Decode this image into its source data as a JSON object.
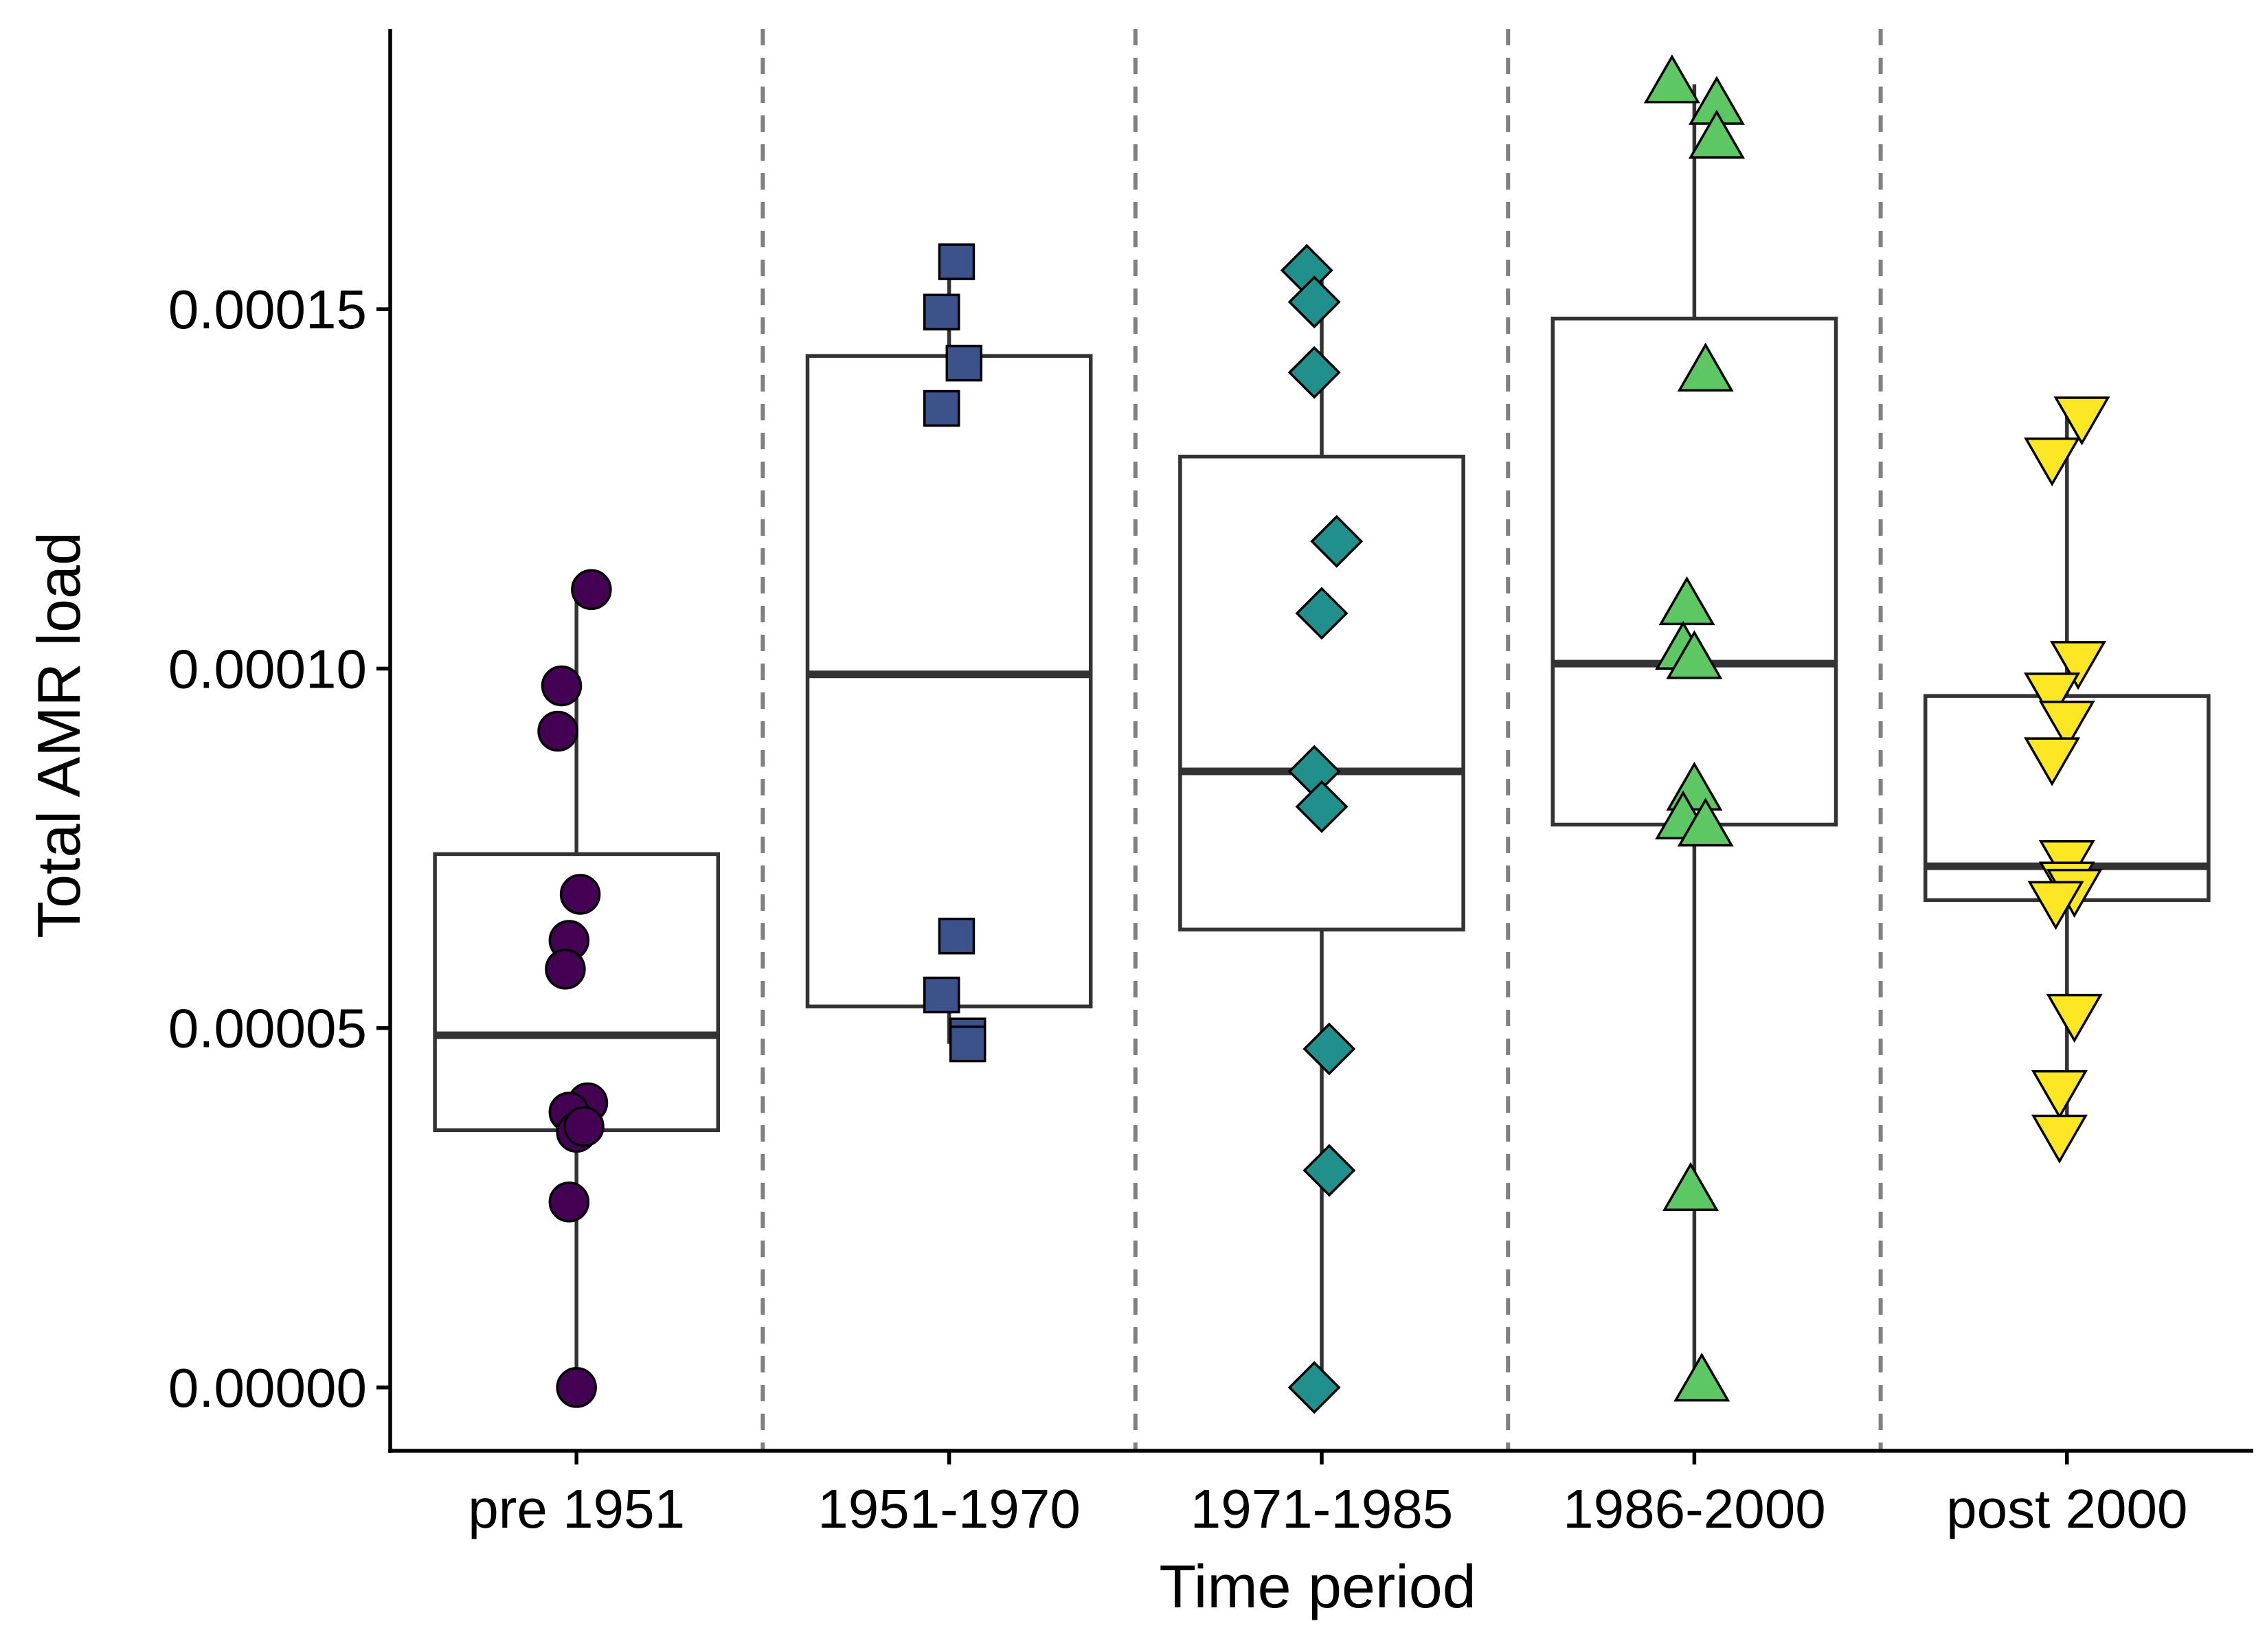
{
  "chart_data": {
    "type": "box",
    "xlabel": "Time period",
    "ylabel": "Total AMR load",
    "ylim": [
      -8.8e-06,
      0.000189
    ],
    "yticks": [
      0.0,
      5e-05,
      0.0001,
      0.00015
    ],
    "ytick_labels": [
      "0.00000",
      "0.00005",
      "0.00010",
      "0.00015"
    ],
    "categories": [
      "pre 1951",
      "1951-1970",
      "1971-1985",
      "1986-2000",
      "post 2000"
    ],
    "separators": "dashed vertical lines between groups",
    "grid": false,
    "legend": "none",
    "groups": [
      {
        "category": "pre 1951",
        "color": "#440154",
        "marker": "circle",
        "box": {
          "whisker_low": 0.0,
          "q1": 3.58e-05,
          "median": 4.9e-05,
          "q3": 7.42e-05,
          "whisker_high": 0.000111
        },
        "points": [
          {
            "offset": 0.04,
            "y": 0.000111
          },
          {
            "offset": -0.04,
            "y": 9.76e-05
          },
          {
            "offset": -0.05,
            "y": 9.13e-05
          },
          {
            "offset": 0.01,
            "y": 6.86e-05
          },
          {
            "offset": -0.02,
            "y": 6.22e-05
          },
          {
            "offset": -0.03,
            "y": 5.82e-05
          },
          {
            "offset": 0.03,
            "y": 3.96e-05
          },
          {
            "offset": -0.02,
            "y": 3.83e-05
          },
          {
            "offset": 0.0,
            "y": 3.55e-05
          },
          {
            "offset": 0.02,
            "y": 3.63e-05
          },
          {
            "offset": -0.02,
            "y": 2.58e-05
          },
          {
            "offset": 0.0,
            "y": 0.0
          }
        ]
      },
      {
        "category": "1951-1970",
        "color": "#3B528B",
        "marker": "square",
        "box": {
          "whisker_low": 4.78e-05,
          "q1": 5.3e-05,
          "median": 9.92e-05,
          "q3": 0.0001435,
          "whisker_high": 0.0001566
        },
        "points": [
          {
            "offset": 0.02,
            "y": 0.0001566
          },
          {
            "offset": -0.02,
            "y": 0.0001496
          },
          {
            "offset": 0.04,
            "y": 0.0001425
          },
          {
            "offset": -0.02,
            "y": 0.0001362
          },
          {
            "offset": 0.02,
            "y": 6.28e-05
          },
          {
            "offset": -0.02,
            "y": 5.46e-05
          },
          {
            "offset": 0.05,
            "y": 4.89e-05
          },
          {
            "offset": 0.05,
            "y": 4.78e-05
          }
        ]
      },
      {
        "category": "1971-1985",
        "color": "#21908C",
        "marker": "diamond",
        "box": {
          "whisker_low": 0.0,
          "q1": 6.37e-05,
          "median": 8.57e-05,
          "q3": 0.0001295,
          "whisker_high": 0.0001554
        },
        "points": [
          {
            "offset": -0.04,
            "y": 0.0001554
          },
          {
            "offset": -0.02,
            "y": 0.000151
          },
          {
            "offset": -0.02,
            "y": 0.0001412
          },
          {
            "offset": 0.04,
            "y": 0.0001177
          },
          {
            "offset": 0.0,
            "y": 0.0001077
          },
          {
            "offset": -0.02,
            "y": 8.57e-05
          },
          {
            "offset": 0.0,
            "y": 8.08e-05
          },
          {
            "offset": 0.02,
            "y": 4.71e-05
          },
          {
            "offset": 0.02,
            "y": 3.02e-05
          },
          {
            "offset": -0.02,
            "y": 0.0
          }
        ]
      },
      {
        "category": "1986-2000",
        "color": "#5DC863",
        "marker": "triangle-up",
        "box": {
          "whisker_low": 0.0,
          "q1": 7.83e-05,
          "median": 0.0001007,
          "q3": 0.0001487,
          "whisker_high": 0.0001813
        },
        "points": [
          {
            "offset": -0.06,
            "y": 0.0001813
          },
          {
            "offset": 0.06,
            "y": 0.0001783
          },
          {
            "offset": 0.06,
            "y": 0.0001736
          },
          {
            "offset": 0.03,
            "y": 0.0001412
          },
          {
            "offset": -0.02,
            "y": 0.0001087
          },
          {
            "offset": -0.03,
            "y": 0.0001025
          },
          {
            "offset": 0.0,
            "y": 0.0001012
          },
          {
            "offset": 0.0,
            "y": 8.29e-05
          },
          {
            "offset": -0.03,
            "y": 7.89e-05
          },
          {
            "offset": 0.03,
            "y": 7.79e-05
          },
          {
            "offset": -0.01,
            "y": 2.72e-05
          },
          {
            "offset": 0.02,
            "y": 7e-07
          }
        ]
      },
      {
        "category": "post 2000",
        "color": "#FDE725",
        "marker": "triangle-down",
        "box": {
          "whisker_low": 3.53e-05,
          "q1": 6.78e-05,
          "median": 7.25e-05,
          "q3": 9.62e-05,
          "whisker_high": 0.0001352
        },
        "points": [
          {
            "offset": 0.04,
            "y": 0.0001352
          },
          {
            "offset": -0.04,
            "y": 0.0001295
          },
          {
            "offset": 0.03,
            "y": 0.0001012
          },
          {
            "offset": -0.04,
            "y": 9.68e-05
          },
          {
            "offset": 0.0,
            "y": 9.29e-05
          },
          {
            "offset": -0.04,
            "y": 8.78e-05
          },
          {
            "offset": 0.0,
            "y": 7.35e-05
          },
          {
            "offset": 0.0,
            "y": 7.05e-05
          },
          {
            "offset": 0.02,
            "y": 6.95e-05
          },
          {
            "offset": -0.03,
            "y": 6.78e-05
          },
          {
            "offset": 0.02,
            "y": 5.21e-05
          },
          {
            "offset": -0.02,
            "y": 4.15e-05
          },
          {
            "offset": -0.02,
            "y": 3.53e-05
          }
        ]
      }
    ]
  }
}
